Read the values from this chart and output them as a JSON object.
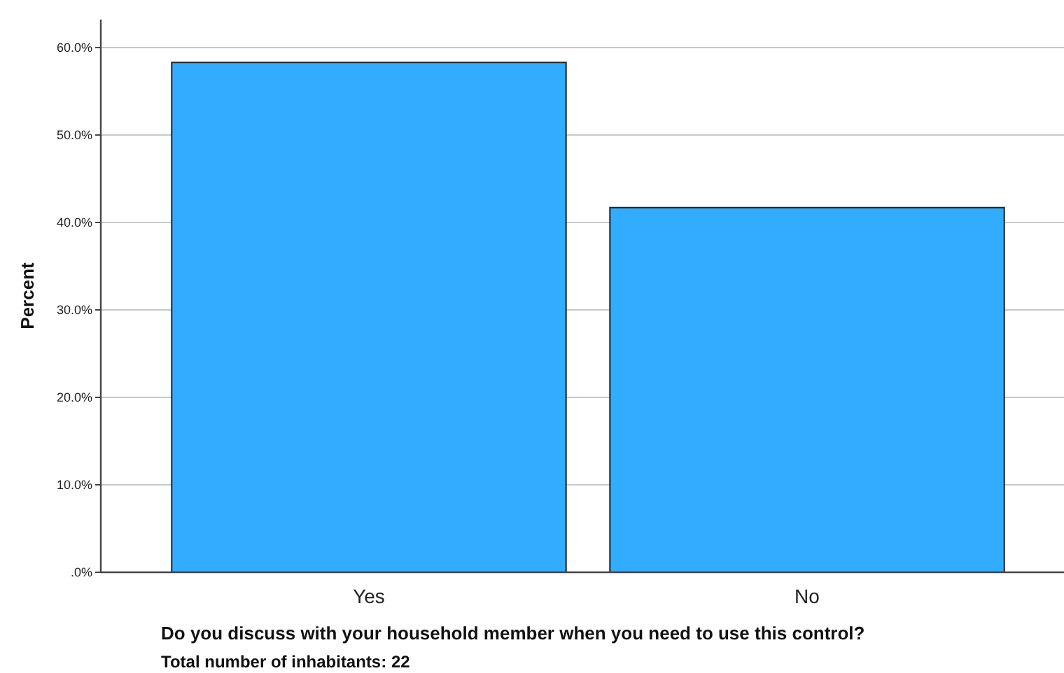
{
  "chart_data": {
    "type": "bar",
    "xlabel": "Do you discuss with your household member when you need to use this control?",
    "ylabel": "Percent",
    "annotations": [
      "Total number of inhabitants: 22"
    ],
    "categories": [
      "Yes",
      "No"
    ],
    "values": [
      58.3,
      41.7
    ],
    "color": "#31acfe",
    "ylim": [
      0,
      63.2
    ],
    "yticks": [
      {
        "value": 0,
        "label": ".0%"
      },
      {
        "value": 10,
        "label": "10.0%"
      },
      {
        "value": 20,
        "label": "20.0%"
      },
      {
        "value": 30,
        "label": "30.0%"
      },
      {
        "value": 40,
        "label": "40.0%"
      },
      {
        "value": 50,
        "label": "50.0%"
      },
      {
        "value": 60,
        "label": "60.0%"
      }
    ],
    "grid": "y"
  }
}
